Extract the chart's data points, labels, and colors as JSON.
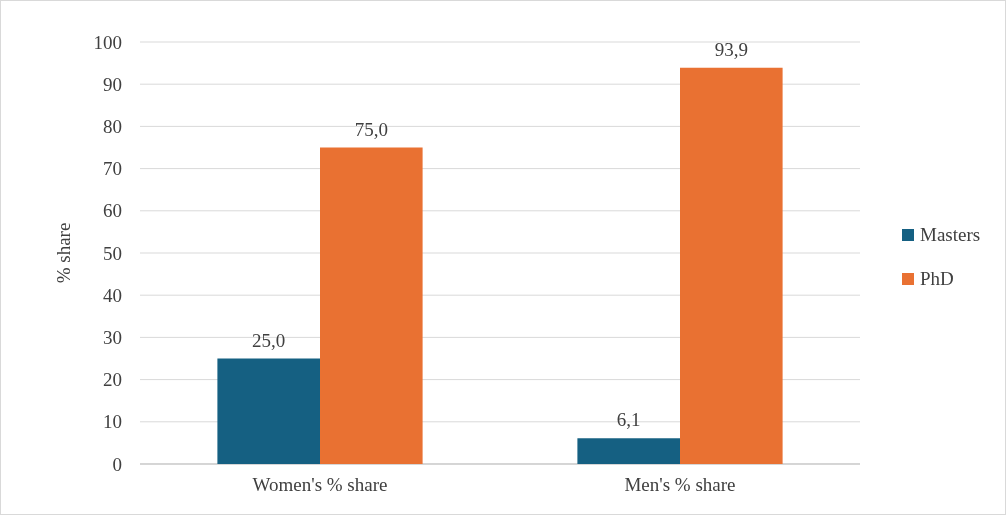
{
  "chart_data": {
    "type": "bar",
    "ylabel": "% share",
    "categories": [
      "Women's % share",
      "Men's % share"
    ],
    "series": [
      {
        "name": "Masters",
        "color": "#156082",
        "values": [
          25.0,
          6.1
        ],
        "value_labels": [
          "25,0",
          "6,1"
        ]
      },
      {
        "name": "PhD",
        "color": "#e97132",
        "values": [
          75.0,
          93.9
        ],
        "value_labels": [
          "75,0",
          "93,9"
        ]
      }
    ],
    "ylim": [
      0,
      100
    ],
    "yticks": [
      0,
      10,
      20,
      30,
      40,
      50,
      60,
      70,
      80,
      90,
      100
    ],
    "grid": "y",
    "legend": "right"
  }
}
